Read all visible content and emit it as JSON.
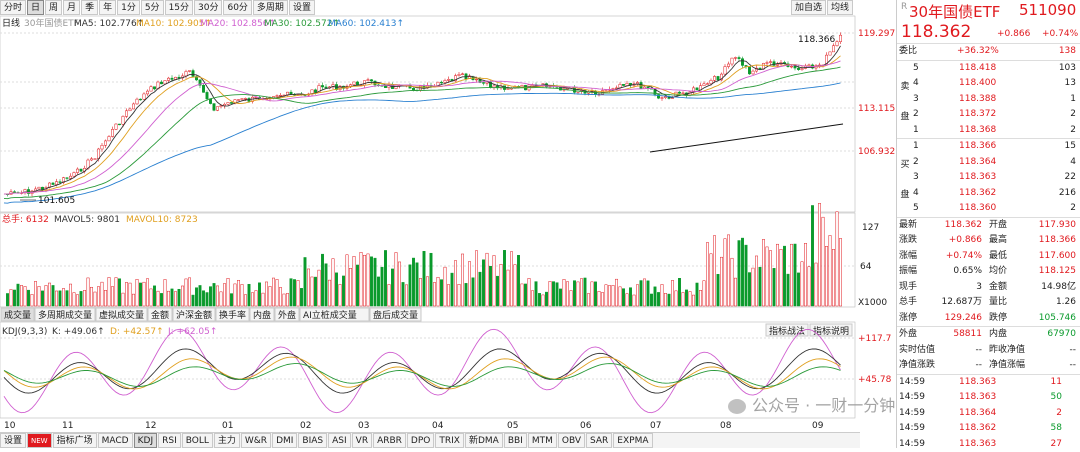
{
  "toolbar": {
    "tabs": [
      "分时",
      "日",
      "周",
      "月",
      "季",
      "年",
      "1分",
      "5分",
      "15分",
      "30分",
      "60分",
      "多周期",
      "设置"
    ],
    "active": "日",
    "right_buttons": [
      "加自选",
      "均线"
    ]
  },
  "indicators_top": {
    "label": "日线",
    "name": "30年国债ETF",
    "ma5": "MA5: 102.776↑",
    "ma10": "MA10: 102.905↑",
    "ma20": "MA20: 102.856↑",
    "ma30": "MA30: 102.572↑",
    "ma60": "MA60: 102.413↑"
  },
  "price_axis": [
    "119.297",
    "113.115",
    "106.932"
  ],
  "high_label": "118.366",
  "low_label": "101.605",
  "vol_info": {
    "total": "总手: 6132",
    "mavol5": "MAVOL5: 9801",
    "mavol10": "MAVOL10: 8723"
  },
  "vol_axis": [
    "127",
    "64",
    "X1000"
  ],
  "vol_tabs": [
    "成交量",
    "多周期成交量",
    "虚拟成交量",
    "金额",
    "沪深金额",
    "换手率",
    "内盘",
    "外盘",
    "AI立桩成交量",
    "盘后成交量"
  ],
  "kdj_info": {
    "name": "KDJ(9,3,3)",
    "k": "K: +49.06↑",
    "d": "D: +42.57↑",
    "j": "J: +62.05↑"
  },
  "kdj_buttons": [
    "指标战法",
    "指标说明"
  ],
  "kdj_axis": [
    "+117.7",
    "+45.78"
  ],
  "months": [
    "10",
    "11",
    "12",
    "01",
    "02",
    "03",
    "04",
    "05",
    "06",
    "07",
    "08",
    "09"
  ],
  "bottom_tabs": [
    "设置",
    "NEW",
    "指标广场",
    "MACD",
    "KDJ",
    "RSI",
    "BOLL",
    "主力",
    "W&R",
    "DMI",
    "BIAS",
    "ASI",
    "VR",
    "ARBR",
    "DPO",
    "TRIX",
    "新DMA",
    "BBI",
    "MTM",
    "OBV",
    "SAR",
    "EXPMA"
  ],
  "colors": {
    "up": "#e0191e",
    "down": "#0a9a2c",
    "ma5": "#333333",
    "ma10": "#e0a020",
    "ma20": "#d060d0",
    "ma30": "#2a9a3a",
    "ma60": "#2a80d0"
  },
  "quote": {
    "prefix": "R",
    "name": "30年国债ETF",
    "code": "511090",
    "price": "118.362",
    "change": "+0.866",
    "pct": "+0.74%"
  },
  "weibi": {
    "label": "委比",
    "value": "+36.32%",
    "diff": "138"
  },
  "sells": [
    {
      "l": "5",
      "p": "118.418",
      "v": "103"
    },
    {
      "l": "4",
      "p": "118.400",
      "v": "13"
    },
    {
      "l": "3",
      "p": "118.388",
      "v": "1"
    },
    {
      "l": "2",
      "p": "118.372",
      "v": "2"
    },
    {
      "l": "1",
      "p": "118.368",
      "v": "2"
    }
  ],
  "buys": [
    {
      "l": "1",
      "p": "118.366",
      "v": "15"
    },
    {
      "l": "2",
      "p": "118.364",
      "v": "4"
    },
    {
      "l": "3",
      "p": "118.363",
      "v": "22"
    },
    {
      "l": "4",
      "p": "118.362",
      "v": "216"
    },
    {
      "l": "5",
      "p": "118.360",
      "v": "2"
    }
  ],
  "side_sell": [
    "卖",
    "盘"
  ],
  "side_buy": [
    "买",
    "盘"
  ],
  "stats": [
    {
      "a": "最新",
      "av": "118.362",
      "b": "开盘",
      "bv": "117.930"
    },
    {
      "a": "涨跌",
      "av": "+0.866",
      "b": "最高",
      "bv": "118.366"
    },
    {
      "a": "涨幅",
      "av": "+0.74%",
      "b": "最低",
      "bv": "117.600"
    },
    {
      "a": "振幅",
      "av": "0.65%",
      "b": "均价",
      "bv": "118.125"
    },
    {
      "a": "现手",
      "av": "3",
      "b": "金额",
      "bv": "14.98亿"
    },
    {
      "a": "总手",
      "av": "12.687万",
      "b": "量比",
      "bv": "1.26"
    },
    {
      "a": "涨停",
      "av": "129.246",
      "b": "跌停",
      "bv": "105.746"
    }
  ],
  "waipan": {
    "a": "外盘",
    "av": "58811",
    "b": "内盘",
    "bv": "67970"
  },
  "iopv": [
    {
      "a": "实时估值",
      "av": "--",
      "b": "昨收净值",
      "bv": "--"
    },
    {
      "a": "净值涨跌",
      "av": "--",
      "b": "净值涨幅",
      "bv": "--"
    }
  ],
  "ticks": [
    {
      "t": "14:59",
      "p": "118.363",
      "v": "11"
    },
    {
      "t": "14:59",
      "p": "118.363",
      "v": "50"
    },
    {
      "t": "14:59",
      "p": "118.364",
      "v": "2"
    },
    {
      "t": "14:59",
      "p": "118.362",
      "v": "58"
    },
    {
      "t": "14:59",
      "p": "118.363",
      "v": "27"
    }
  ],
  "watermark": "公众号 · 一财一分钟"
}
